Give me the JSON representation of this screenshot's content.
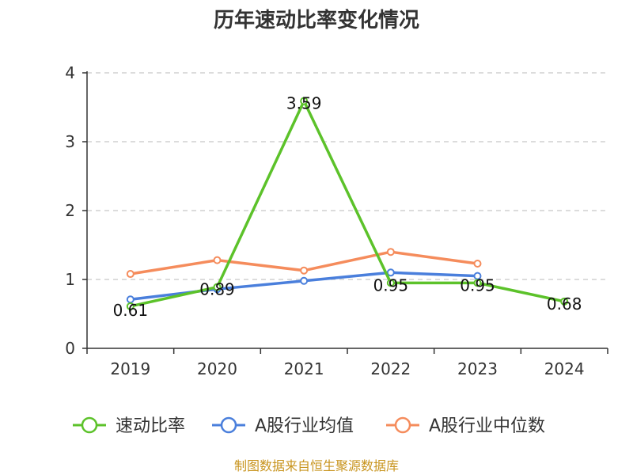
{
  "source_note": "制图数据来自恒生聚源数据库",
  "chart_data": {
    "type": "line",
    "title": "历年速动比率变化情况",
    "xlabel": "",
    "ylabel": "",
    "categories": [
      "2019",
      "2020",
      "2021",
      "2022",
      "2023",
      "2024"
    ],
    "ylim": [
      0,
      4
    ],
    "yticks": [
      0,
      1,
      2,
      3,
      4
    ],
    "grid": "horizontal-dashed",
    "legend_position": "bottom",
    "series": [
      {
        "name": "速动比率",
        "color": "#5cc22a",
        "values": [
          0.61,
          0.89,
          3.59,
          0.95,
          0.95,
          0.68
        ],
        "labels": [
          "0.61",
          "0.89",
          "3.59",
          "0.95",
          "0.95",
          "0.68"
        ]
      },
      {
        "name": "A股行业均值",
        "color": "#4a7fdc",
        "values": [
          0.71,
          0.86,
          0.98,
          1.1,
          1.05,
          null
        ]
      },
      {
        "name": "A股行业中位数",
        "color": "#f58c5c",
        "values": [
          1.08,
          1.28,
          1.13,
          1.4,
          1.23,
          null
        ]
      }
    ]
  }
}
